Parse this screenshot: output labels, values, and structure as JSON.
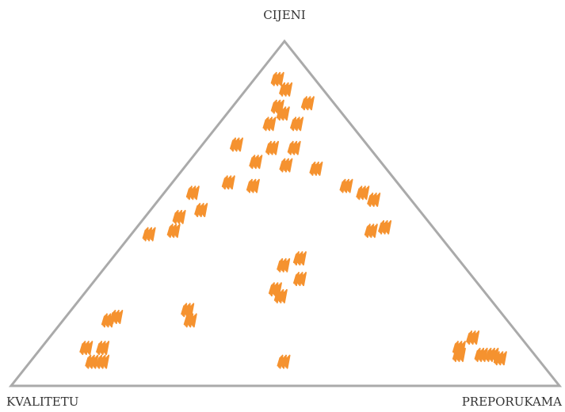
{
  "chart_data": {
    "type": "ternary",
    "axes": [
      "CIJENI",
      "KVALITETU",
      "PREPORUKAMA"
    ],
    "color": "#f5922f",
    "edge_color": "#aaaaaa",
    "points": [
      [
        89,
        7,
        4
      ],
      [
        86,
        7,
        7
      ],
      [
        82,
        5,
        13
      ],
      [
        81,
        11,
        8
      ],
      [
        79,
        11,
        10
      ],
      [
        76,
        10,
        14
      ],
      [
        76,
        15,
        9
      ],
      [
        69,
        18,
        13
      ],
      [
        69,
        14,
        17
      ],
      [
        70,
        24,
        6
      ],
      [
        65,
        23,
        12
      ],
      [
        64,
        18,
        18
      ],
      [
        63,
        13,
        24
      ],
      [
        59,
        31,
        10
      ],
      [
        58,
        27,
        15
      ],
      [
        56,
        39,
        5
      ],
      [
        58,
        10,
        32
      ],
      [
        56,
        8,
        36
      ],
      [
        54,
        7,
        39
      ],
      [
        49,
        45,
        6
      ],
      [
        51,
        40,
        9
      ],
      [
        45,
        48,
        7
      ],
      [
        44,
        53,
        3
      ],
      [
        45,
        12,
        43
      ],
      [
        46,
        9,
        45
      ],
      [
        35,
        33,
        32
      ],
      [
        37,
        29,
        34
      ],
      [
        31,
        32,
        37
      ],
      [
        28,
        38,
        34
      ],
      [
        26,
        38,
        36
      ],
      [
        22,
        57,
        21
      ],
      [
        19,
        58,
        23
      ],
      [
        19,
        73,
        8
      ],
      [
        20,
        71,
        9
      ],
      [
        11,
        78,
        11
      ],
      [
        11,
        81,
        8
      ],
      [
        7,
        82,
        11
      ],
      [
        7,
        80,
        13
      ],
      [
        7,
        47,
        46
      ],
      [
        14,
        9,
        77
      ],
      [
        11,
        13,
        76
      ],
      [
        9,
        14,
        77
      ],
      [
        9,
        10,
        81
      ],
      [
        9,
        8,
        83
      ],
      [
        8,
        7,
        85
      ]
    ]
  }
}
